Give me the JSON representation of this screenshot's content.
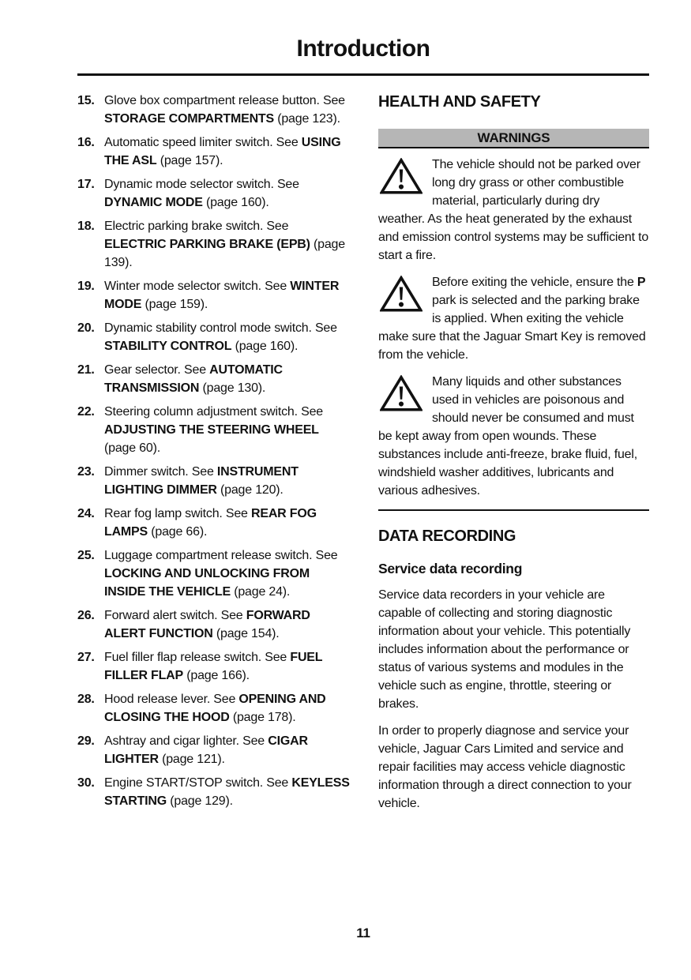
{
  "page": {
    "title": "Introduction",
    "page_number": "11"
  },
  "colors": {
    "text": "#111111",
    "warnings_bar_bg": "#b6b6b6",
    "page_bg": "#ffffff"
  },
  "left_column": {
    "items": [
      {
        "number": "15.",
        "segments": [
          {
            "text": "Glove box compartment release button. See ",
            "bold": false
          },
          {
            "text": "STORAGE COMPARTMENTS",
            "bold": true
          },
          {
            "text": " (page 123).",
            "bold": false
          }
        ]
      },
      {
        "number": "16.",
        "segments": [
          {
            "text": "Automatic speed limiter switch. See ",
            "bold": false
          },
          {
            "text": "USING THE ASL",
            "bold": true
          },
          {
            "text": " (page 157).",
            "bold": false
          }
        ]
      },
      {
        "number": "17.",
        "segments": [
          {
            "text": "Dynamic mode selector switch. See ",
            "bold": false
          },
          {
            "text": "DYNAMIC MODE",
            "bold": true
          },
          {
            "text": " (page 160).",
            "bold": false
          }
        ]
      },
      {
        "number": "18.",
        "segments": [
          {
            "text": "Electric parking brake switch. See ",
            "bold": false
          },
          {
            "text": "ELECTRIC PARKING BRAKE (EPB)",
            "bold": true
          },
          {
            "text": " (page 139).",
            "bold": false
          }
        ]
      },
      {
        "number": "19.",
        "segments": [
          {
            "text": "Winter mode selector switch. See ",
            "bold": false
          },
          {
            "text": "WINTER MODE",
            "bold": true
          },
          {
            "text": " (page 159).",
            "bold": false
          }
        ]
      },
      {
        "number": "20.",
        "segments": [
          {
            "text": "Dynamic stability control mode switch. See ",
            "bold": false
          },
          {
            "text": "STABILITY CONTROL",
            "bold": true
          },
          {
            "text": " (page 160).",
            "bold": false
          }
        ]
      },
      {
        "number": "21.",
        "segments": [
          {
            "text": "Gear selector. See ",
            "bold": false
          },
          {
            "text": "AUTOMATIC TRANSMISSION",
            "bold": true
          },
          {
            "text": " (page 130).",
            "bold": false
          }
        ]
      },
      {
        "number": "22.",
        "segments": [
          {
            "text": "Steering column adjustment switch. See ",
            "bold": false
          },
          {
            "text": "ADJUSTING THE STEERING WHEEL",
            "bold": true
          },
          {
            "text": " (page 60).",
            "bold": false
          }
        ]
      },
      {
        "number": "23.",
        "segments": [
          {
            "text": "Dimmer switch. See ",
            "bold": false
          },
          {
            "text": "INSTRUMENT LIGHTING DIMMER",
            "bold": true
          },
          {
            "text": " (page 120).",
            "bold": false
          }
        ]
      },
      {
        "number": "24.",
        "segments": [
          {
            "text": "Rear fog lamp switch. See ",
            "bold": false
          },
          {
            "text": "REAR FOG LAMPS",
            "bold": true
          },
          {
            "text": " (page 66).",
            "bold": false
          }
        ]
      },
      {
        "number": "25.",
        "segments": [
          {
            "text": "Luggage compartment release switch. See ",
            "bold": false
          },
          {
            "text": "LOCKING AND UNLOCKING FROM INSIDE THE VEHICLE",
            "bold": true
          },
          {
            "text": " (page 24).",
            "bold": false
          }
        ]
      },
      {
        "number": "26.",
        "segments": [
          {
            "text": "Forward alert switch. See ",
            "bold": false
          },
          {
            "text": "FORWARD ALERT FUNCTION",
            "bold": true
          },
          {
            "text": " (page 154).",
            "bold": false
          }
        ]
      },
      {
        "number": "27.",
        "segments": [
          {
            "text": "Fuel filler flap release switch. See ",
            "bold": false
          },
          {
            "text": "FUEL FILLER FLAP",
            "bold": true
          },
          {
            "text": " (page 166).",
            "bold": false
          }
        ]
      },
      {
        "number": "28.",
        "segments": [
          {
            "text": "Hood release lever. See ",
            "bold": false
          },
          {
            "text": "OPENING AND CLOSING THE HOOD",
            "bold": true
          },
          {
            "text": " (page 178).",
            "bold": false
          }
        ]
      },
      {
        "number": "29.",
        "segments": [
          {
            "text": "Ashtray and cigar lighter. See ",
            "bold": false
          },
          {
            "text": "CIGAR LIGHTER",
            "bold": true
          },
          {
            "text": " (page 121).",
            "bold": false
          }
        ]
      },
      {
        "number": "30.",
        "segments": [
          {
            "text": "Engine START/STOP switch. See ",
            "bold": false
          },
          {
            "text": "KEYLESS STARTING",
            "bold": true
          },
          {
            "text": " (page 129).",
            "bold": false
          }
        ]
      }
    ]
  },
  "right_column": {
    "health_safety": {
      "heading": "HEALTH AND SAFETY",
      "warnings_box": {
        "label": "WARNINGS",
        "icon": "warning-triangle-icon",
        "warnings": [
          {
            "segments": [
              {
                "text": "The vehicle should not be parked over long dry grass or other combustible material, particularly during dry weather. As the heat generated by the exhaust and emission control systems may be sufficient to start a fire.",
                "bold": false
              }
            ]
          },
          {
            "segments": [
              {
                "text": "Before exiting the vehicle, ensure the ",
                "bold": false
              },
              {
                "text": "P",
                "bold": true
              },
              {
                "text": " park is selected and the parking brake is applied. When exiting the vehicle make sure that the Jaguar Smart Key is removed from the vehicle.",
                "bold": false
              }
            ]
          },
          {
            "segments": [
              {
                "text": "Many liquids and other substances used in vehicles are poisonous and should never be consumed and must be kept away from open wounds. These substances include anti-freeze, brake fluid, fuel, windshield washer additives, lubricants and various adhesives.",
                "bold": false
              }
            ]
          }
        ]
      }
    },
    "data_recording": {
      "heading": "DATA RECORDING",
      "subheading": "Service data recording",
      "paragraphs": [
        "Service data recorders in your vehicle are capable of collecting and storing diagnostic information about your vehicle. This potentially includes information about the performance or status of various systems and modules in the vehicle such as engine, throttle, steering or brakes.",
        "In order to properly diagnose and service your vehicle, Jaguar Cars Limited and service and repair facilities may access vehicle diagnostic information through a direct connection to your vehicle."
      ]
    }
  }
}
